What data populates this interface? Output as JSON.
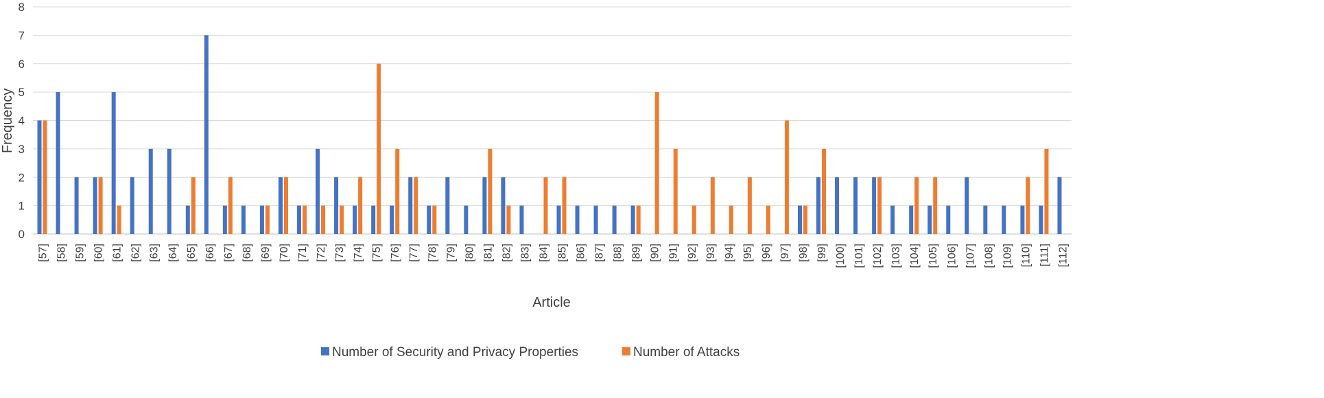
{
  "chart_data": {
    "type": "bar",
    "xlabel": "Article",
    "ylabel": "Frequency",
    "ylim": [
      0,
      8
    ],
    "yticks": [
      "0",
      "1",
      "2",
      "3",
      "4",
      "5",
      "6",
      "7",
      "8"
    ],
    "grid": true,
    "legend_position": "bottom-center",
    "categories": [
      "[57]",
      "[58]",
      "[59]",
      "[60]",
      "[61]",
      "[62]",
      "[63]",
      "[64]",
      "[65]",
      "[66]",
      "[67]",
      "[68]",
      "[69]",
      "[70]",
      "[71]",
      "[72]",
      "[73]",
      "[74]",
      "[75]",
      "[76]",
      "[77]",
      "[78]",
      "[79]",
      "[80]",
      "[81]",
      "[82]",
      "[83]",
      "[84]",
      "[85]",
      "[86]",
      "[87]",
      "[88]",
      "[89]",
      "[90]",
      "[91]",
      "[92]",
      "[93]",
      "[94]",
      "[95]",
      "[96]",
      "[97]",
      "[98]",
      "[99]",
      "[100]",
      "[101]",
      "[102]",
      "[103]",
      "[104]",
      "[105]",
      "[106]",
      "[107]",
      "[108]",
      "[109]",
      "[110]",
      "[111]",
      "[112]"
    ],
    "series": [
      {
        "name": "Number of Security and Privacy Properties",
        "color": "#4472c4",
        "values": [
          4,
          5,
          2,
          2,
          5,
          2,
          3,
          3,
          1,
          7,
          1,
          1,
          1,
          2,
          1,
          3,
          2,
          1,
          1,
          1,
          2,
          1,
          2,
          1,
          2,
          2,
          1,
          0,
          1,
          1,
          1,
          1,
          1,
          0,
          0,
          0,
          0,
          0,
          0,
          0,
          0,
          1,
          2,
          2,
          2,
          2,
          1,
          1,
          1,
          1,
          2,
          1,
          1,
          1,
          1,
          2
        ]
      },
      {
        "name": "Number of Attacks",
        "color": "#ed7d31",
        "values": [
          4,
          0,
          0,
          2,
          1,
          0,
          0,
          0,
          2,
          0,
          2,
          0,
          1,
          2,
          1,
          1,
          1,
          2,
          6,
          3,
          2,
          1,
          0,
          0,
          3,
          1,
          0,
          2,
          2,
          0,
          0,
          0,
          1,
          5,
          3,
          1,
          2,
          1,
          2,
          1,
          4,
          1,
          3,
          0,
          0,
          2,
          0,
          2,
          2,
          0,
          0,
          0,
          0,
          2,
          3,
          0
        ]
      }
    ]
  }
}
